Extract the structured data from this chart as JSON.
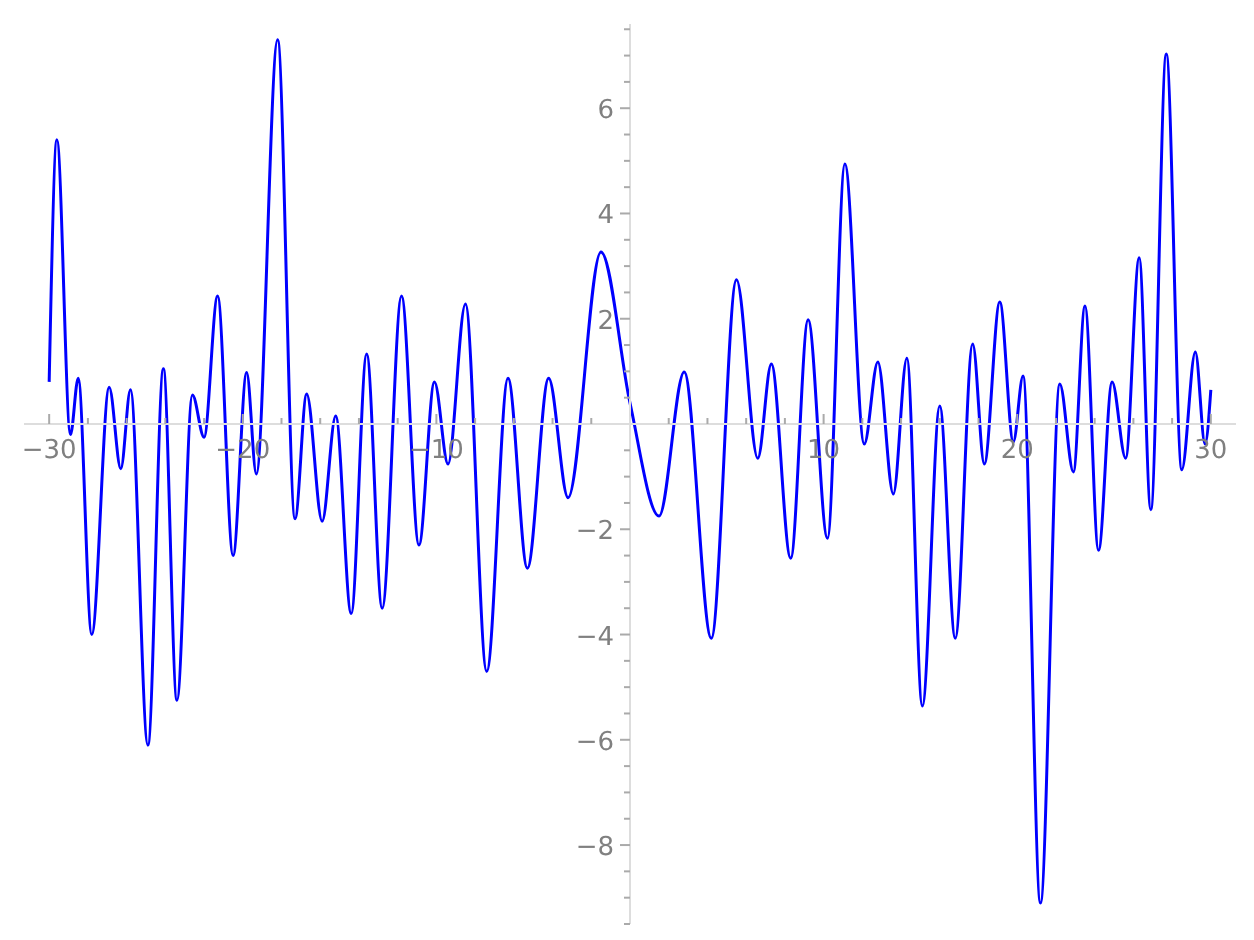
{
  "chart_data": {
    "type": "line",
    "x": [
      -30,
      -29.6,
      -28.9,
      -28.5,
      -27.8,
      -26.9,
      -26.3,
      -25.8,
      -24.9,
      -24.1,
      -23.4,
      -22.6,
      -22.0,
      -21.3,
      -20.5,
      -19.8,
      -19.3,
      -18.2,
      -17.3,
      -16.7,
      -15.9,
      -15.2,
      -14.4,
      -13.6,
      -12.8,
      -11.8,
      -10.9,
      -10.1,
      -9.4,
      -8.5,
      -7.4,
      -6.3,
      -5.3,
      -4.2,
      -3.2,
      -1.5,
      0,
      1.5,
      2.8,
      4.2,
      5.5,
      6.6,
      7.3,
      8.3,
      9.2,
      10.2,
      11.1,
      12.1,
      12.8,
      13.6,
      14.3,
      15.1,
      16.0,
      16.8,
      17.7,
      18.3,
      19.1,
      19.8,
      20.3,
      21.2,
      22.2,
      22.9,
      23.5,
      24.2,
      24.9,
      25.6,
      26.3,
      26.9,
      27.7,
      28.5,
      29.2,
      29.7,
      30
    ],
    "series": [
      {
        "color": "#0000ff",
        "values": [
          0.8,
          5.4,
          -0.2,
          0.87,
          -4.0,
          0.7,
          -0.85,
          0.65,
          -6.1,
          1.05,
          -5.25,
          0.55,
          -0.25,
          2.43,
          -2.5,
          0.98,
          -0.95,
          7.3,
          -1.8,
          0.57,
          -1.85,
          0.15,
          -3.6,
          1.33,
          -3.5,
          2.43,
          -2.3,
          0.8,
          -0.76,
          2.28,
          -4.7,
          0.87,
          -2.74,
          0.87,
          -1.4,
          3.27,
          0.4,
          -1.75,
          0.99,
          -4.07,
          2.74,
          -0.65,
          1.14,
          -2.55,
          1.98,
          -2.17,
          4.94,
          -0.38,
          1.18,
          -1.33,
          1.25,
          -5.36,
          0.34,
          -4.07,
          1.52,
          -0.76,
          2.32,
          -0.34,
          0.91,
          -9.1,
          0.76,
          -0.91,
          2.24,
          -2.4,
          0.8,
          -0.65,
          3.16,
          -1.63,
          7.03,
          -0.87,
          1.37,
          -0.38,
          0.65
        ]
      }
    ],
    "xlim": [
      -31.3,
      31.3
    ],
    "ylim": [
      -9.5,
      7.6
    ],
    "xticks": [
      {
        "value": -30,
        "label": "−30"
      },
      {
        "value": -28,
        "label": null
      },
      {
        "value": -26,
        "label": null
      },
      {
        "value": -24,
        "label": null
      },
      {
        "value": -22,
        "label": null
      },
      {
        "value": -20,
        "label": "−20"
      },
      {
        "value": -18,
        "label": null
      },
      {
        "value": -16,
        "label": null
      },
      {
        "value": -14,
        "label": null
      },
      {
        "value": -12,
        "label": null
      },
      {
        "value": -10,
        "label": "−10"
      },
      {
        "value": -8,
        "label": null
      },
      {
        "value": -6,
        "label": null
      },
      {
        "value": -4,
        "label": null
      },
      {
        "value": -2,
        "label": null
      },
      {
        "value": 2,
        "label": null
      },
      {
        "value": 4,
        "label": null
      },
      {
        "value": 6,
        "label": null
      },
      {
        "value": 8,
        "label": null
      },
      10,
      {
        "value": 12,
        "label": null
      },
      {
        "value": 14,
        "label": null
      },
      {
        "value": 16,
        "label": null
      },
      {
        "value": 18,
        "label": null
      },
      20,
      {
        "value": 22,
        "label": null
      },
      {
        "value": 24,
        "label": null
      },
      {
        "value": 26,
        "label": null
      },
      {
        "value": 28,
        "label": null
      },
      30
    ],
    "yticks": [
      {
        "value": -9.5,
        "label": null
      },
      {
        "value": -9,
        "label": null
      },
      {
        "value": -8.5,
        "label": null
      },
      {
        "value": -8,
        "label": "−8"
      },
      {
        "value": -7.5,
        "label": null
      },
      {
        "value": -7,
        "label": null
      },
      {
        "value": -6.5,
        "label": null
      },
      {
        "value": -6,
        "label": "−6"
      },
      {
        "value": -5.5,
        "label": null
      },
      {
        "value": -5,
        "label": null
      },
      {
        "value": -4.5,
        "label": null
      },
      {
        "value": -4,
        "label": "−4"
      },
      {
        "value": -3.5,
        "label": null
      },
      {
        "value": -3,
        "label": null
      },
      {
        "value": -2.5,
        "label": null
      },
      {
        "value": -2,
        "label": "−2"
      },
      {
        "value": -1.5,
        "label": null
      },
      {
        "value": -1,
        "label": null
      },
      {
        "value": -0.5,
        "label": null
      },
      {
        "value": 0.5,
        "label": null
      },
      {
        "value": 1,
        "label": null
      },
      {
        "value": 1.5,
        "label": null
      },
      2,
      {
        "value": 2.5,
        "label": null
      },
      {
        "value": 3,
        "label": null
      },
      {
        "value": 3.5,
        "label": null
      },
      4,
      {
        "value": 4.5,
        "label": null
      },
      {
        "value": 5,
        "label": null
      },
      {
        "value": 5.5,
        "label": null
      },
      6,
      {
        "value": 6.5,
        "label": null
      },
      {
        "value": 7,
        "label": null
      },
      {
        "value": 7.5,
        "label": null
      }
    ],
    "grid": false,
    "legend": false,
    "marker": "none",
    "line_style": "solid"
  }
}
